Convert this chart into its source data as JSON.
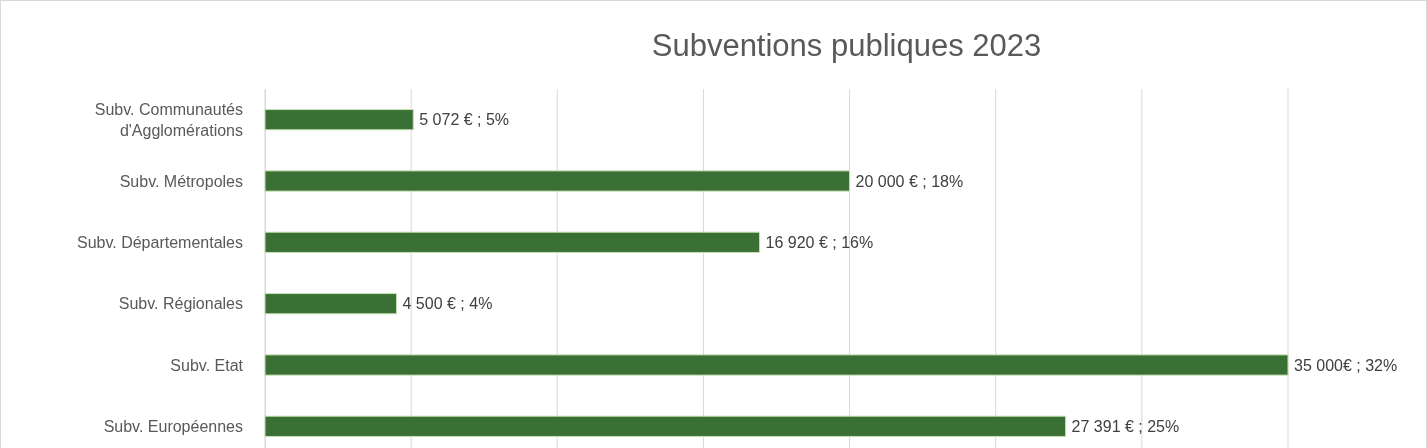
{
  "chart_data": {
    "type": "bar",
    "orientation": "horizontal",
    "title": "Subventions publiques 2023",
    "categories": [
      "Subv. Communautés d'Agglomérations",
      "Subv. Métropoles",
      "Subv. Départementales",
      "Subv. Régionales",
      "Subv. Etat",
      "Subv. Européennes"
    ],
    "values": [
      5072,
      20000,
      16920,
      4500,
      35000,
      27391
    ],
    "value_labels": [
      "5 072 € ; 5%",
      "20 000 € ; 18%",
      "16 920 € ; 16%",
      "4 500 € ; 4%",
      "35 000€ ; 32%",
      "27 391 € ; 25%"
    ],
    "color": "#3b7034",
    "xlim": [
      0,
      35000
    ],
    "xticks": [
      {
        "value": 0,
        "label": null
      },
      {
        "value": 5000,
        "label": null
      },
      {
        "value": 10000,
        "label": null
      },
      {
        "value": 15000,
        "label": null
      },
      {
        "value": 20000,
        "label": null
      },
      {
        "value": 25000,
        "label": null
      },
      {
        "value": 30000,
        "label": null
      },
      {
        "value": 35000,
        "label": null
      }
    ],
    "grid": "x",
    "tick_labels": "y"
  }
}
